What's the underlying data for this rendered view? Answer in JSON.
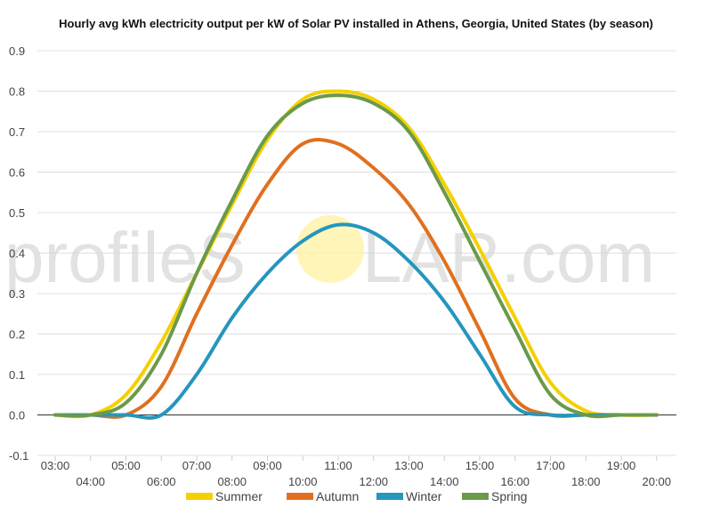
{
  "chart_data": {
    "type": "line",
    "title": "Hourly avg kWh electricity output per kW of Solar PV installed in Athens, Georgia, United States (by season)",
    "xlabel": "",
    "ylabel": "",
    "ylim": [
      -0.1,
      0.9
    ],
    "yticks": [
      "-0.1",
      "0.0",
      "0.1",
      "0.2",
      "0.3",
      "0.4",
      "0.5",
      "0.6",
      "0.7",
      "0.8",
      "0.9"
    ],
    "x": [
      "03:00",
      "04:00",
      "05:00",
      "06:00",
      "07:00",
      "08:00",
      "09:00",
      "10:00",
      "11:00",
      "12:00",
      "13:00",
      "14:00",
      "15:00",
      "16:00",
      "17:00",
      "18:00",
      "19:00",
      "20:00"
    ],
    "grid": true,
    "legend_position": "bottom",
    "series": [
      {
        "name": "Summer",
        "color": "#f5d000",
        "values": [
          0.0,
          0.0,
          0.05,
          0.18,
          0.35,
          0.52,
          0.68,
          0.78,
          0.8,
          0.78,
          0.71,
          0.57,
          0.41,
          0.24,
          0.08,
          0.01,
          0.0,
          0.0
        ]
      },
      {
        "name": "Autumn",
        "color": "#e07020",
        "values": [
          0.0,
          0.0,
          0.0,
          0.07,
          0.25,
          0.42,
          0.57,
          0.67,
          0.67,
          0.61,
          0.52,
          0.38,
          0.21,
          0.04,
          0.0,
          0.0,
          0.0,
          0.0
        ]
      },
      {
        "name": "Winter",
        "color": "#2596be",
        "values": [
          0.0,
          0.0,
          0.0,
          0.0,
          0.1,
          0.24,
          0.35,
          0.43,
          0.47,
          0.45,
          0.38,
          0.28,
          0.15,
          0.02,
          0.0,
          0.0,
          0.0,
          0.0
        ]
      },
      {
        "name": "Spring",
        "color": "#6a9a4a",
        "values": [
          0.0,
          0.0,
          0.03,
          0.15,
          0.35,
          0.53,
          0.69,
          0.77,
          0.79,
          0.77,
          0.7,
          0.55,
          0.38,
          0.21,
          0.05,
          0.0,
          0.0,
          0.0
        ]
      }
    ]
  },
  "watermark": {
    "text_left": "profileS",
    "text_right": "LAR.com",
    "sun_color": "#fff3a8"
  }
}
